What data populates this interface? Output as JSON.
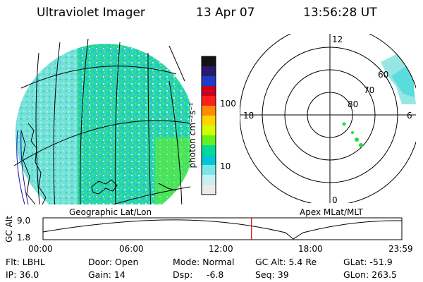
{
  "header": {
    "instrument": "Ultraviolet Imager",
    "date": "13 Apr 07",
    "time": "13:56:28 UT"
  },
  "colorbar": {
    "unit": "photon cm⁻²s⁻¹",
    "tick_labels": [
      "100",
      "10"
    ],
    "scale": "log",
    "colors": [
      "#141414",
      "#2a1a6a",
      "#1e3cc8",
      "#c8001e",
      "#ff1e1e",
      "#ff8c00",
      "#ffd200",
      "#d2ff00",
      "#64f01e",
      "#00dc96",
      "#00c8d2",
      "#78e6e6",
      "#c8f0f0",
      "#ebebeb"
    ]
  },
  "geo_map": {
    "caption": "Geographic Lat/Lon"
  },
  "polar_plot": {
    "caption": "Apex MLat/MLT",
    "mlt_labels": [
      "12",
      "18",
      "6",
      "0"
    ],
    "lat_labels": [
      "60",
      "70",
      "80"
    ]
  },
  "timeline": {
    "axis_label": "GC Alt",
    "y_ticks": [
      "9.0",
      "1.8"
    ],
    "x_ticks": [
      "00:00",
      "06:00",
      "12:00",
      "18:00",
      "23:59"
    ],
    "current_marker_time": "13:56",
    "marker_color": "#e00000"
  },
  "status": {
    "flt": "Flt: LBHL",
    "ip": "IP: 36.0",
    "door": "Door: Open",
    "gain": "Gain: 14",
    "mode": "Mode: Normal",
    "dsp_label": "Dsp:",
    "dsp_value": "-6.8",
    "gc_alt": "GC Alt: 5.4 Re",
    "seq": "Seq: 39",
    "glat": "GLat: -51.9",
    "glon": "GLon: 263.5"
  }
}
